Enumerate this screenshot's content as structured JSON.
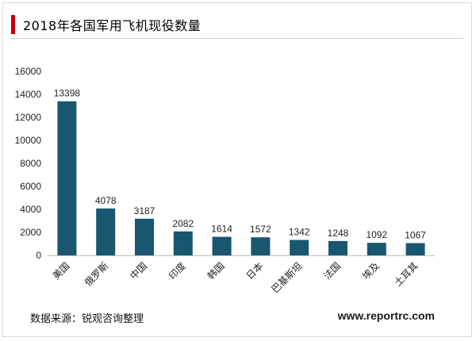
{
  "title": "2018年各国军用飞机现役数量",
  "accent_color": "#c00000",
  "bar_color": "#18576f",
  "footer": {
    "source": "数据来源：锐观咨询整理",
    "website": "www.reportrc.com"
  },
  "chart_data": {
    "type": "bar",
    "title": "2018年各国军用飞机现役数量",
    "categories": [
      "美国",
      "俄罗斯",
      "中国",
      "印度",
      "韩国",
      "日本",
      "巴基斯坦",
      "法国",
      "埃及",
      "土耳其"
    ],
    "values": [
      13398,
      4078,
      3187,
      2082,
      1614,
      1572,
      1342,
      1248,
      1092,
      1067
    ],
    "ylim": [
      0,
      16000
    ],
    "yticks": [
      0,
      2000,
      4000,
      6000,
      8000,
      10000,
      12000,
      14000,
      16000
    ],
    "grid": false,
    "legend": "none"
  }
}
